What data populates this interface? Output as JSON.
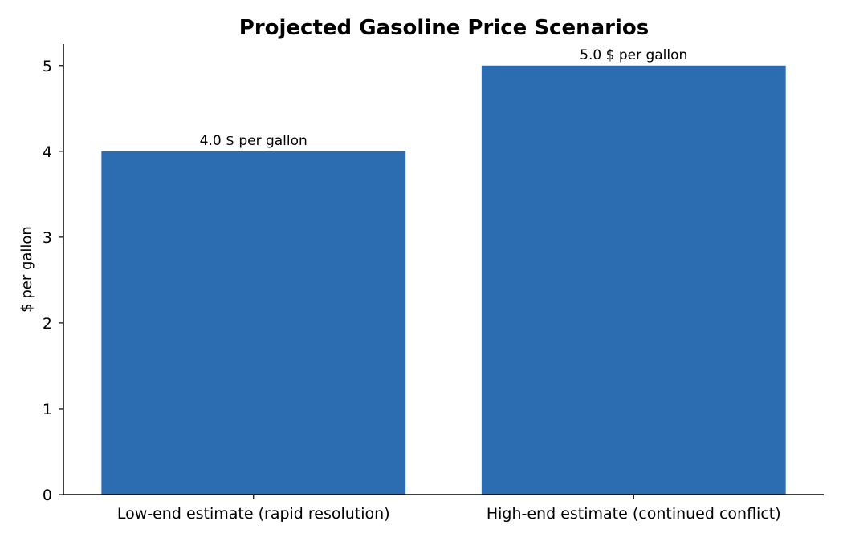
{
  "chart_data": {
    "type": "bar",
    "title": "Projected Gasoline Price Scenarios",
    "xlabel": "",
    "ylabel": "$ per gallon",
    "categories": [
      "Low-end estimate (rapid resolution)",
      "High-end estimate (continued conflict)"
    ],
    "values": [
      4.0,
      5.0
    ],
    "data_labels": [
      "4.0 $ per gallon",
      "5.0 $ per gallon"
    ],
    "ylim": [
      0,
      5.25
    ],
    "yticks": [
      0,
      1,
      2,
      3,
      4,
      5
    ],
    "bar_color": "#2c6cb0",
    "grid": false,
    "legend": "none"
  }
}
